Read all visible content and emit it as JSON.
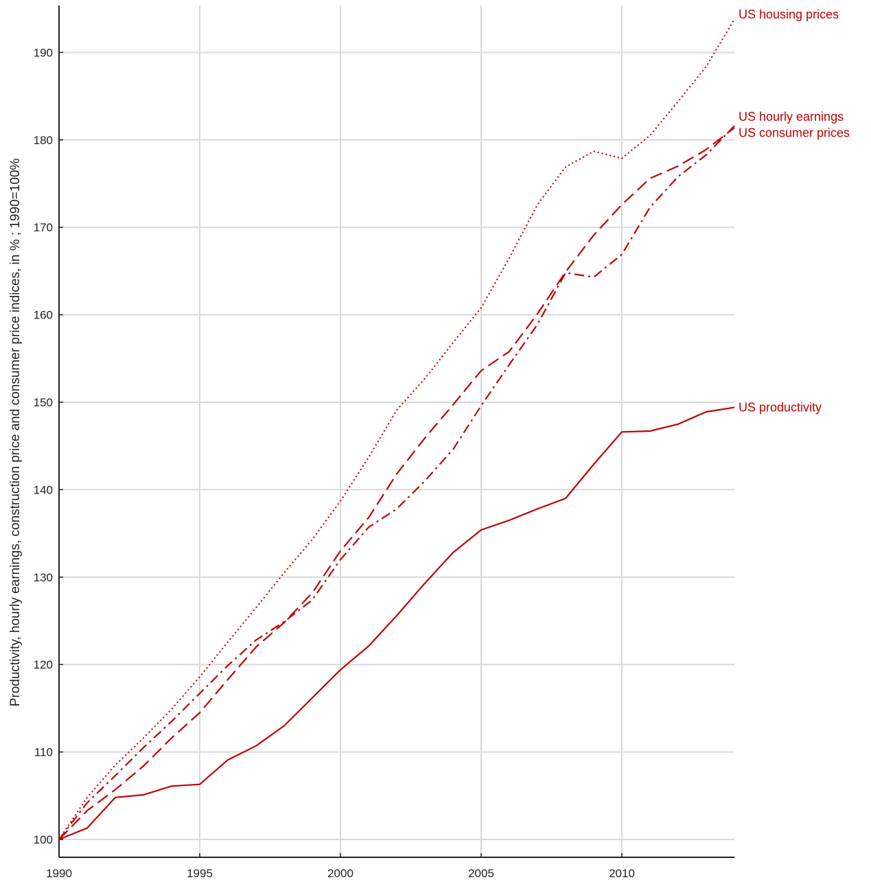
{
  "chart_data": {
    "type": "line",
    "title": "",
    "xlabel": "",
    "ylabel": "Productivity, hourly earnings, construction price and consumer price indices, in % ; 1990=100%",
    "xlim": [
      1990,
      2014
    ],
    "ylim": [
      99.5,
      195
    ],
    "x_ticks": [
      1990,
      1995,
      2000,
      2005,
      2010
    ],
    "y_ticks": [
      100,
      110,
      120,
      130,
      140,
      150,
      160,
      170,
      180,
      190
    ],
    "grid": true,
    "legend": "none (series labels at right end of lines)",
    "line_color": "#c00000",
    "x": [
      1990,
      1991,
      1992,
      1993,
      1994,
      1995,
      1996,
      1997,
      1998,
      1999,
      2000,
      2001,
      2002,
      2003,
      2004,
      2005,
      2006,
      2007,
      2008,
      2009,
      2010,
      2011,
      2012,
      2013,
      2014
    ],
    "series": [
      {
        "name": "US housing prices",
        "style": "dotted",
        "values": [
          100.0,
          104.8,
          108.5,
          111.6,
          114.9,
          118.6,
          122.6,
          126.5,
          130.5,
          134.3,
          138.7,
          143.7,
          149.1,
          152.7,
          156.8,
          160.8,
          166.5,
          172.6,
          176.9,
          178.7,
          177.9,
          180.5,
          184.4,
          188.4,
          193.8
        ]
      },
      {
        "name": "US hourly earnings",
        "style": "dashed",
        "values": [
          100.0,
          103.3,
          105.7,
          108.4,
          111.6,
          114.5,
          118.3,
          122.0,
          124.8,
          128.2,
          133.0,
          136.8,
          141.8,
          145.9,
          149.7,
          153.6,
          155.8,
          160.1,
          164.9,
          169.1,
          172.6,
          175.6,
          177.0,
          178.9,
          181.4
        ]
      },
      {
        "name": "US consumer prices",
        "style": "dash-dot",
        "values": [
          100.0,
          104.2,
          107.3,
          110.5,
          113.5,
          116.7,
          119.9,
          122.8,
          124.9,
          127.4,
          132.0,
          135.7,
          137.8,
          141.0,
          144.6,
          149.6,
          154.3,
          158.9,
          164.8,
          164.3,
          166.9,
          172.3,
          175.8,
          178.3,
          181.6
        ]
      },
      {
        "name": "US productivity",
        "style": "solid",
        "values": [
          100.0,
          101.3,
          104.8,
          105.1,
          106.1,
          106.3,
          109.1,
          110.7,
          113.0,
          116.2,
          119.4,
          122.1,
          125.6,
          129.3,
          132.8,
          135.4,
          136.5,
          137.8,
          139.0,
          142.9,
          146.6,
          146.7,
          147.5,
          148.9,
          149.4
        ]
      }
    ]
  }
}
